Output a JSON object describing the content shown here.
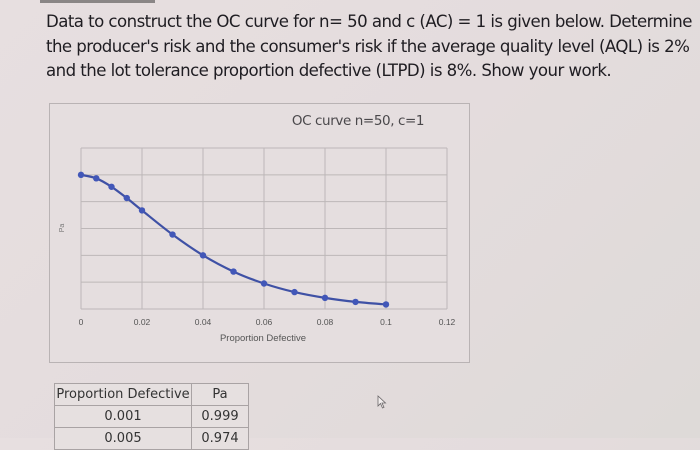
{
  "problem": {
    "lines": [
      "Data to construct the OC curve for n= 50 and c (AC) = 1 is given below. Determine",
      "the producer's risk and the consumer's risk if the average quality level (AQL) is 2%",
      "and the lot tolerance proportion defective (LTPD) is 8%. Show your work."
    ]
  },
  "chart": {
    "title": "OC curve n=50, c=1",
    "ylabel": "Pa",
    "xlabel": "Proportion Defective",
    "xticks": [
      "0",
      "0.02",
      "0.04",
      "0.06",
      "0.08",
      "0.1",
      "0.12"
    ],
    "line_color": "#3f51a5",
    "marker_color": "#4257b8",
    "grid_color": "#bdb7b8"
  },
  "chart_data": {
    "type": "line",
    "title": "OC curve n=50, c=1",
    "xlabel": "Proportion Defective",
    "ylabel": "Pa",
    "xlim": [
      0,
      0.12
    ],
    "ylim": [
      0,
      1.2
    ],
    "xticks": [
      0,
      0.02,
      0.04,
      0.06,
      0.08,
      0.1,
      0.12
    ],
    "grid": true,
    "legend": "none",
    "series": [
      {
        "name": "Pa",
        "x": [
          0,
          0.005,
          0.01,
          0.015,
          0.02,
          0.03,
          0.04,
          0.05,
          0.06,
          0.07,
          0.08,
          0.09,
          0.1
        ],
        "values": [
          1.0,
          0.974,
          0.911,
          0.827,
          0.735,
          0.555,
          0.4,
          0.279,
          0.19,
          0.126,
          0.083,
          0.053,
          0.034
        ]
      }
    ]
  },
  "table": {
    "headers": [
      "Proportion Defective",
      "Pa"
    ],
    "rows": [
      [
        "0.001",
        "0.999"
      ],
      [
        "0.005",
        "0.974"
      ]
    ]
  }
}
